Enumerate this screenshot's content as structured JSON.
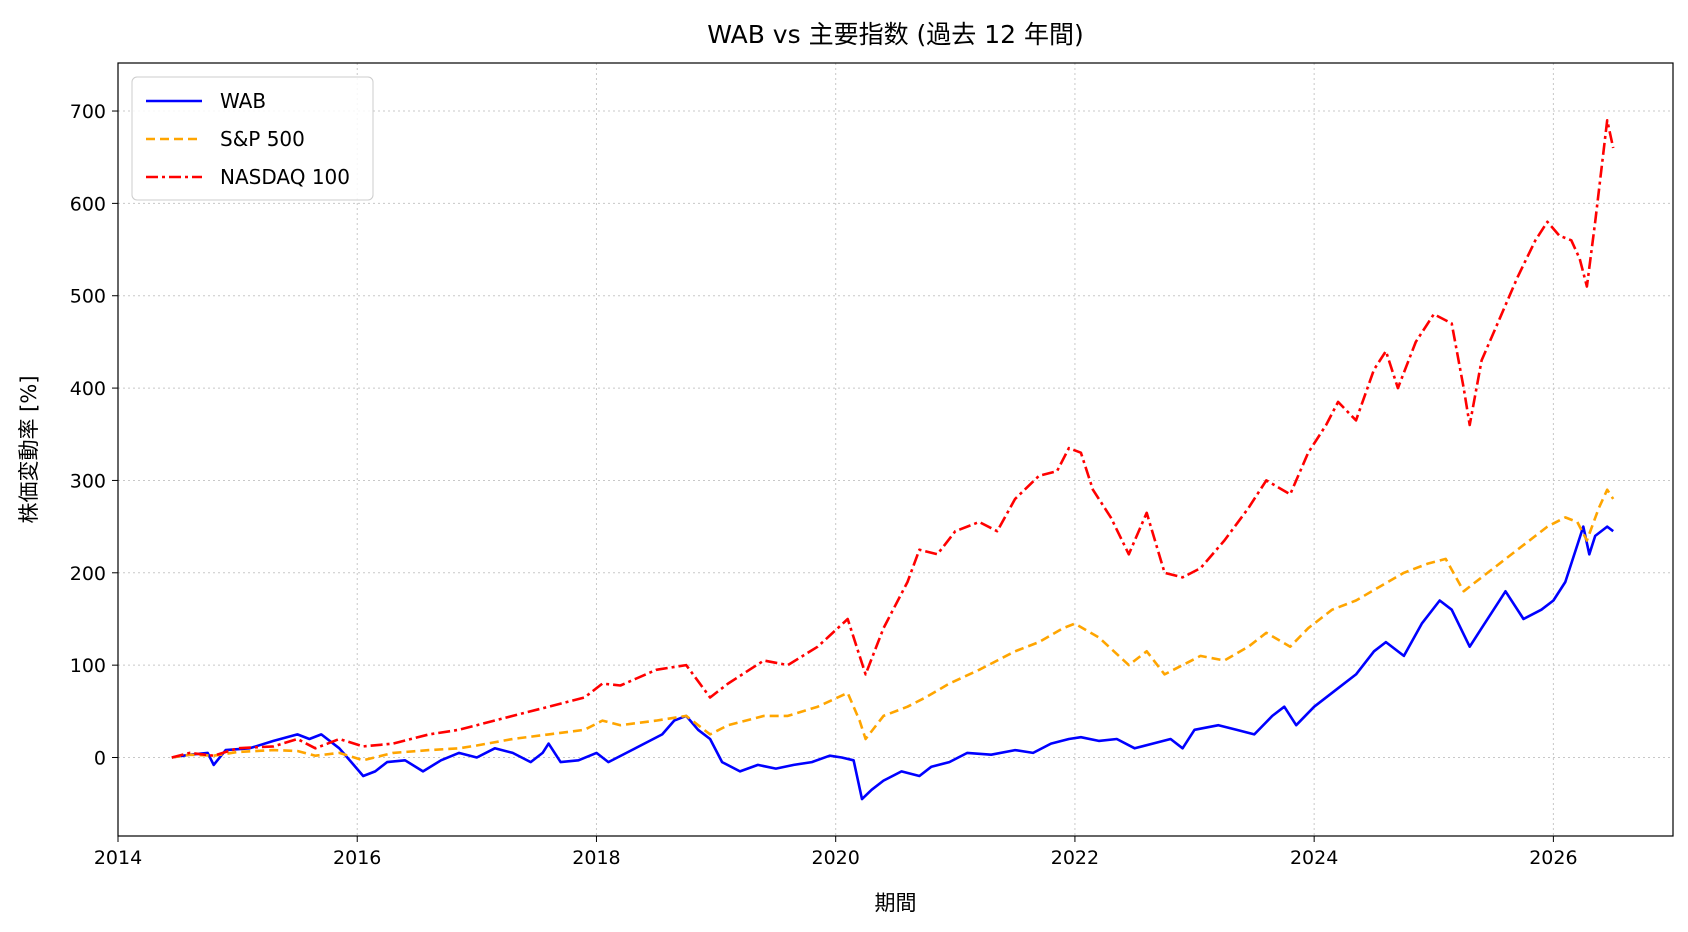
{
  "chart_data": {
    "type": "line",
    "title": "WAB vs 主要指数 (過去 12 年間)",
    "xlabel": "期間",
    "ylabel": "株価変動率 [%]",
    "xlim": [
      2014.0,
      2027.0
    ],
    "ylim": [
      -85,
      752
    ],
    "x_ticks": [
      2014,
      2016,
      2018,
      2020,
      2022,
      2024,
      2026
    ],
    "y_ticks": [
      0,
      100,
      200,
      300,
      400,
      500,
      600,
      700
    ],
    "grid": true,
    "legend_position": "top-left",
    "series": [
      {
        "name": "WAB",
        "color": "#0000ff",
        "dash": "solid",
        "points": [
          [
            2014.45,
            0
          ],
          [
            2014.6,
            3
          ],
          [
            2014.75,
            5
          ],
          [
            2014.8,
            -8
          ],
          [
            2014.9,
            8
          ],
          [
            2015.1,
            10
          ],
          [
            2015.3,
            18
          ],
          [
            2015.5,
            25
          ],
          [
            2015.6,
            20
          ],
          [
            2015.7,
            25
          ],
          [
            2015.85,
            10
          ],
          [
            2015.95,
            -5
          ],
          [
            2016.05,
            -20
          ],
          [
            2016.15,
            -15
          ],
          [
            2016.25,
            -5
          ],
          [
            2016.4,
            -3
          ],
          [
            2016.55,
            -15
          ],
          [
            2016.7,
            -3
          ],
          [
            2016.85,
            5
          ],
          [
            2017.0,
            0
          ],
          [
            2017.15,
            10
          ],
          [
            2017.3,
            5
          ],
          [
            2017.45,
            -5
          ],
          [
            2017.55,
            5
          ],
          [
            2017.6,
            15
          ],
          [
            2017.7,
            -5
          ],
          [
            2017.85,
            -3
          ],
          [
            2018.0,
            5
          ],
          [
            2018.1,
            -5
          ],
          [
            2018.25,
            5
          ],
          [
            2018.4,
            15
          ],
          [
            2018.55,
            25
          ],
          [
            2018.65,
            40
          ],
          [
            2018.75,
            45
          ],
          [
            2018.85,
            30
          ],
          [
            2018.95,
            20
          ],
          [
            2019.05,
            -5
          ],
          [
            2019.2,
            -15
          ],
          [
            2019.35,
            -8
          ],
          [
            2019.5,
            -12
          ],
          [
            2019.65,
            -8
          ],
          [
            2019.8,
            -5
          ],
          [
            2019.95,
            2
          ],
          [
            2020.05,
            0
          ],
          [
            2020.15,
            -3
          ],
          [
            2020.22,
            -45
          ],
          [
            2020.3,
            -35
          ],
          [
            2020.4,
            -25
          ],
          [
            2020.55,
            -15
          ],
          [
            2020.7,
            -20
          ],
          [
            2020.8,
            -10
          ],
          [
            2020.95,
            -5
          ],
          [
            2021.1,
            5
          ],
          [
            2021.3,
            3
          ],
          [
            2021.5,
            8
          ],
          [
            2021.65,
            5
          ],
          [
            2021.8,
            15
          ],
          [
            2021.95,
            20
          ],
          [
            2022.05,
            22
          ],
          [
            2022.2,
            18
          ],
          [
            2022.35,
            20
          ],
          [
            2022.5,
            10
          ],
          [
            2022.65,
            15
          ],
          [
            2022.8,
            20
          ],
          [
            2022.9,
            10
          ],
          [
            2023.0,
            30
          ],
          [
            2023.2,
            35
          ],
          [
            2023.35,
            30
          ],
          [
            2023.5,
            25
          ],
          [
            2023.65,
            45
          ],
          [
            2023.75,
            55
          ],
          [
            2023.85,
            35
          ],
          [
            2024.0,
            55
          ],
          [
            2024.2,
            75
          ],
          [
            2024.35,
            90
          ],
          [
            2024.5,
            115
          ],
          [
            2024.6,
            125
          ],
          [
            2024.75,
            110
          ],
          [
            2024.9,
            145
          ],
          [
            2025.05,
            170
          ],
          [
            2025.15,
            160
          ],
          [
            2025.3,
            120
          ],
          [
            2025.4,
            140
          ],
          [
            2025.5,
            160
          ],
          [
            2025.6,
            180
          ],
          [
            2025.75,
            150
          ],
          [
            2025.9,
            160
          ],
          [
            2026.0,
            170
          ],
          [
            2026.1,
            190
          ],
          [
            2026.2,
            230
          ],
          [
            2026.25,
            250
          ],
          [
            2026.3,
            220
          ],
          [
            2026.35,
            240
          ],
          [
            2026.45,
            250
          ],
          [
            2026.5,
            245
          ]
        ]
      },
      {
        "name": "S&P 500",
        "color": "#ffa500",
        "dash": "dashed",
        "points": [
          [
            2014.45,
            0
          ],
          [
            2014.6,
            3
          ],
          [
            2014.8,
            2
          ],
          [
            2015.0,
            6
          ],
          [
            2015.3,
            8
          ],
          [
            2015.5,
            7
          ],
          [
            2015.65,
            2
          ],
          [
            2015.85,
            5
          ],
          [
            2016.05,
            -3
          ],
          [
            2016.3,
            5
          ],
          [
            2016.6,
            8
          ],
          [
            2016.85,
            10
          ],
          [
            2017.0,
            13
          ],
          [
            2017.3,
            20
          ],
          [
            2017.6,
            25
          ],
          [
            2017.9,
            30
          ],
          [
            2018.05,
            40
          ],
          [
            2018.2,
            35
          ],
          [
            2018.5,
            40
          ],
          [
            2018.75,
            45
          ],
          [
            2018.95,
            25
          ],
          [
            2019.1,
            35
          ],
          [
            2019.4,
            45
          ],
          [
            2019.6,
            45
          ],
          [
            2019.85,
            55
          ],
          [
            2020.1,
            70
          ],
          [
            2020.2,
            40
          ],
          [
            2020.25,
            20
          ],
          [
            2020.4,
            45
          ],
          [
            2020.6,
            55
          ],
          [
            2020.75,
            65
          ],
          [
            2020.95,
            80
          ],
          [
            2021.2,
            95
          ],
          [
            2021.5,
            115
          ],
          [
            2021.7,
            125
          ],
          [
            2021.9,
            140
          ],
          [
            2022.0,
            145
          ],
          [
            2022.2,
            130
          ],
          [
            2022.45,
            100
          ],
          [
            2022.6,
            115
          ],
          [
            2022.75,
            90
          ],
          [
            2022.9,
            100
          ],
          [
            2023.05,
            110
          ],
          [
            2023.25,
            105
          ],
          [
            2023.45,
            120
          ],
          [
            2023.6,
            135
          ],
          [
            2023.8,
            120
          ],
          [
            2023.95,
            140
          ],
          [
            2024.15,
            160
          ],
          [
            2024.35,
            170
          ],
          [
            2024.55,
            185
          ],
          [
            2024.75,
            200
          ],
          [
            2024.95,
            210
          ],
          [
            2025.1,
            215
          ],
          [
            2025.25,
            180
          ],
          [
            2025.35,
            190
          ],
          [
            2025.5,
            205
          ],
          [
            2025.7,
            225
          ],
          [
            2025.85,
            240
          ],
          [
            2025.95,
            250
          ],
          [
            2026.1,
            260
          ],
          [
            2026.2,
            255
          ],
          [
            2026.28,
            235
          ],
          [
            2026.38,
            270
          ],
          [
            2026.45,
            290
          ],
          [
            2026.5,
            280
          ]
        ]
      },
      {
        "name": "NASDAQ 100",
        "color": "#ff0000",
        "dash": "dashdot",
        "points": [
          [
            2014.45,
            0
          ],
          [
            2014.6,
            5
          ],
          [
            2014.8,
            2
          ],
          [
            2015.0,
            10
          ],
          [
            2015.3,
            12
          ],
          [
            2015.5,
            20
          ],
          [
            2015.65,
            10
          ],
          [
            2015.85,
            20
          ],
          [
            2016.05,
            12
          ],
          [
            2016.3,
            15
          ],
          [
            2016.6,
            25
          ],
          [
            2016.85,
            30
          ],
          [
            2017.0,
            35
          ],
          [
            2017.3,
            45
          ],
          [
            2017.6,
            55
          ],
          [
            2017.9,
            65
          ],
          [
            2018.05,
            80
          ],
          [
            2018.2,
            78
          ],
          [
            2018.5,
            95
          ],
          [
            2018.75,
            100
          ],
          [
            2018.95,
            65
          ],
          [
            2019.1,
            80
          ],
          [
            2019.4,
            105
          ],
          [
            2019.6,
            100
          ],
          [
            2019.85,
            120
          ],
          [
            2020.1,
            150
          ],
          [
            2020.2,
            110
          ],
          [
            2020.25,
            90
          ],
          [
            2020.4,
            140
          ],
          [
            2020.6,
            190
          ],
          [
            2020.7,
            225
          ],
          [
            2020.85,
            220
          ],
          [
            2021.0,
            245
          ],
          [
            2021.2,
            255
          ],
          [
            2021.35,
            245
          ],
          [
            2021.5,
            280
          ],
          [
            2021.7,
            305
          ],
          [
            2021.85,
            310
          ],
          [
            2021.95,
            335
          ],
          [
            2022.05,
            330
          ],
          [
            2022.15,
            290
          ],
          [
            2022.3,
            260
          ],
          [
            2022.45,
            220
          ],
          [
            2022.6,
            265
          ],
          [
            2022.75,
            200
          ],
          [
            2022.9,
            195
          ],
          [
            2023.05,
            205
          ],
          [
            2023.25,
            235
          ],
          [
            2023.45,
            270
          ],
          [
            2023.6,
            300
          ],
          [
            2023.8,
            285
          ],
          [
            2023.95,
            330
          ],
          [
            2024.1,
            360
          ],
          [
            2024.2,
            385
          ],
          [
            2024.35,
            365
          ],
          [
            2024.5,
            420
          ],
          [
            2024.6,
            440
          ],
          [
            2024.7,
            400
          ],
          [
            2024.85,
            450
          ],
          [
            2025.0,
            480
          ],
          [
            2025.15,
            470
          ],
          [
            2025.25,
            400
          ],
          [
            2025.3,
            360
          ],
          [
            2025.4,
            430
          ],
          [
            2025.55,
            475
          ],
          [
            2025.7,
            520
          ],
          [
            2025.85,
            560
          ],
          [
            2025.95,
            580
          ],
          [
            2026.05,
            565
          ],
          [
            2026.15,
            560
          ],
          [
            2026.22,
            540
          ],
          [
            2026.28,
            510
          ],
          [
            2026.35,
            580
          ],
          [
            2026.45,
            690
          ],
          [
            2026.5,
            660
          ]
        ]
      }
    ]
  }
}
